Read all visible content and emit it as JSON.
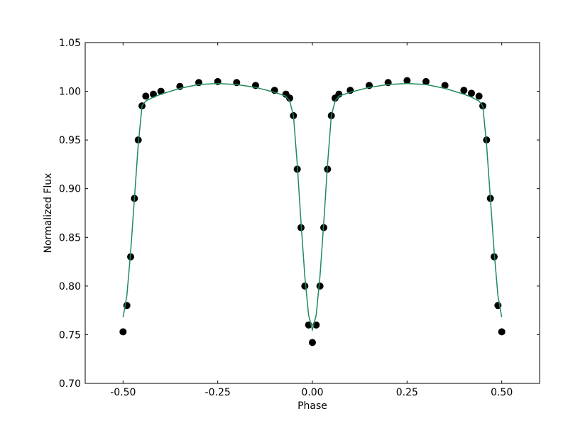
{
  "chart_data": {
    "type": "scatter",
    "xlabel": "Phase",
    "ylabel": "Normalized Flux",
    "x": [
      -0.5,
      -0.49,
      -0.48,
      -0.47,
      -0.46,
      -0.45,
      -0.44,
      -0.42,
      -0.4,
      -0.35,
      -0.3,
      -0.25,
      -0.2,
      -0.15,
      -0.1,
      -0.07,
      -0.06,
      -0.05,
      -0.04,
      -0.03,
      -0.02,
      -0.01,
      0.0,
      0.01,
      0.02,
      0.03,
      0.04,
      0.05,
      0.06,
      0.07,
      0.1,
      0.15,
      0.2,
      0.25,
      0.3,
      0.35,
      0.4,
      0.42,
      0.44,
      0.45,
      0.46,
      0.47,
      0.48,
      0.49,
      0.5
    ],
    "series": [
      {
        "color": "#000000",
        "marker": "o",
        "values": [
          0.753,
          0.78,
          0.83,
          0.89,
          0.95,
          0.985,
          0.995,
          0.997,
          1.0,
          1.005,
          1.009,
          1.01,
          1.009,
          1.006,
          1.001,
          0.997,
          0.993,
          0.975,
          0.92,
          0.86,
          0.8,
          0.76,
          0.742,
          0.76,
          0.8,
          0.86,
          0.92,
          0.975,
          0.993,
          0.997,
          1.001,
          1.006,
          1.009,
          1.011,
          1.01,
          1.006,
          1.001,
          0.998,
          0.995,
          0.985,
          0.95,
          0.89,
          0.83,
          0.78,
          0.753
        ]
      },
      {
        "color": "#1f8a5a",
        "marker": "line",
        "values": [
          0.768,
          0.79,
          0.835,
          0.89,
          0.945,
          0.985,
          0.99,
          0.994,
          0.997,
          1.003,
          1.007,
          1.008,
          1.007,
          1.004,
          0.999,
          0.995,
          0.99,
          0.975,
          0.925,
          0.865,
          0.81,
          0.77,
          0.755,
          0.77,
          0.81,
          0.865,
          0.925,
          0.975,
          0.99,
          0.995,
          0.999,
          1.004,
          1.007,
          1.008,
          1.007,
          1.003,
          0.997,
          0.994,
          0.99,
          0.985,
          0.945,
          0.89,
          0.835,
          0.79,
          0.768
        ]
      }
    ],
    "xlim": [
      -0.6,
      0.6
    ],
    "xticks": [
      {
        "value": -0.5,
        "label": "-0.50"
      },
      {
        "value": -0.25,
        "label": "-0.25"
      },
      {
        "value": 0,
        "label": "0.00"
      },
      {
        "value": 0.25,
        "label": "0.25"
      },
      {
        "value": 0.5,
        "label": "0.50"
      }
    ],
    "ylim": [
      0.7,
      1.05
    ],
    "yticks": [
      {
        "value": 0.7,
        "label": "0.70"
      },
      {
        "value": 0.75,
        "label": "0.75"
      },
      {
        "value": 0.8,
        "label": "0.80"
      },
      {
        "value": 0.85,
        "label": "0.85"
      },
      {
        "value": 0.9,
        "label": "0.90"
      },
      {
        "value": 0.95,
        "label": "0.95"
      },
      {
        "value": 1.0,
        "label": "1.00"
      },
      {
        "value": 1.05,
        "label": "1.05"
      }
    ],
    "grid": false
  }
}
